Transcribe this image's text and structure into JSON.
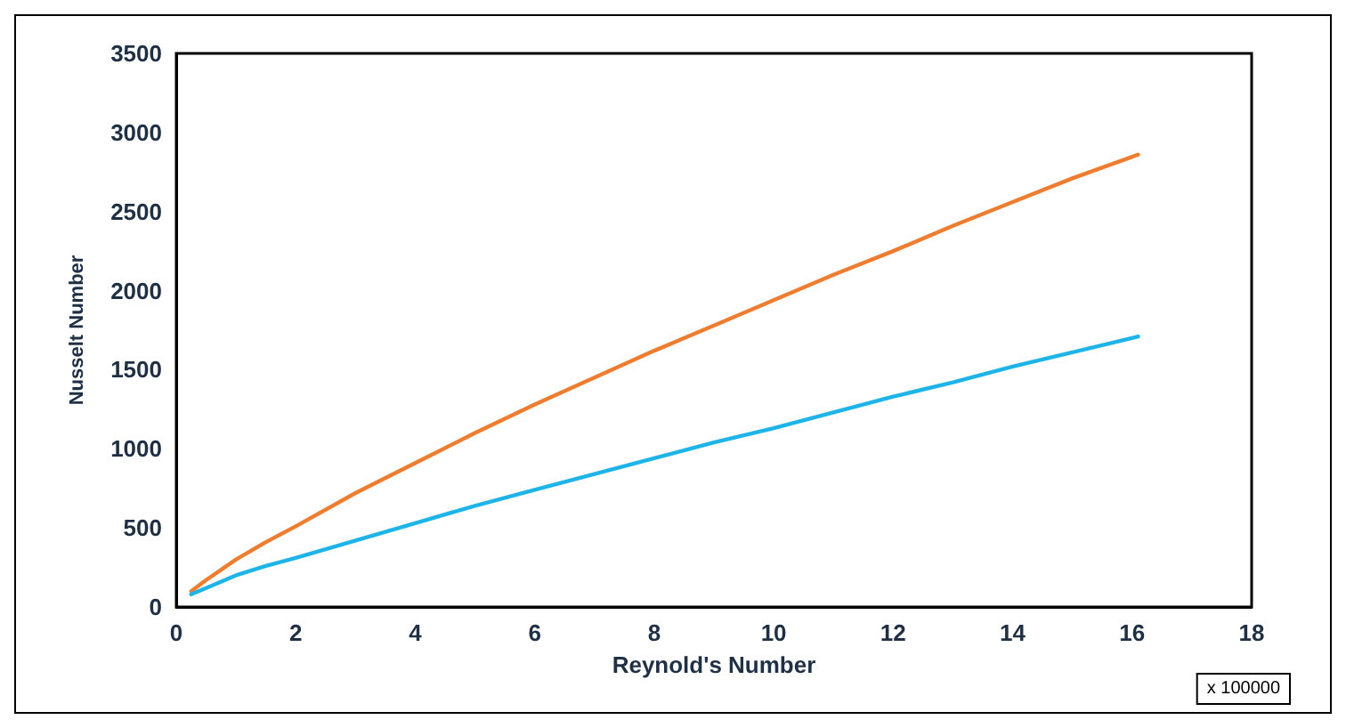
{
  "chart_data": {
    "type": "line",
    "xlabel": "Reynold's Number",
    "ylabel": "Nusselt Number",
    "annotations": [
      "x 100000"
    ],
    "xlim": [
      0,
      18
    ],
    "xticks": [
      0,
      2,
      4,
      6,
      8,
      10,
      12,
      14,
      16,
      18
    ],
    "ylim": [
      0,
      3500
    ],
    "yticks": [
      0,
      500,
      1000,
      1500,
      2000,
      2500,
      3000,
      3500
    ],
    "grid": false,
    "legend": false,
    "marker": "none",
    "line_style": "solid",
    "series": [
      {
        "color": "#ed7d31",
        "x": [
          0.25,
          0.5,
          1,
          1.5,
          2,
          3,
          4,
          5,
          6,
          7,
          8,
          9,
          10,
          11,
          12,
          13,
          14,
          15,
          16.1
        ],
        "values": [
          100,
          170,
          300,
          410,
          510,
          720,
          910,
          1100,
          1280,
          1450,
          1620,
          1780,
          1940,
          2100,
          2250,
          2410,
          2560,
          2710,
          2860
        ]
      },
      {
        "color": "#1fb4e8",
        "x": [
          0.25,
          0.5,
          1,
          1.5,
          2,
          3,
          4,
          5,
          6,
          7,
          8,
          9,
          10,
          11,
          12,
          13,
          14,
          15,
          16.1
        ],
        "values": [
          80,
          120,
          200,
          260,
          310,
          420,
          530,
          640,
          740,
          840,
          940,
          1040,
          1130,
          1230,
          1330,
          1420,
          1520,
          1610,
          1710
        ]
      }
    ]
  }
}
